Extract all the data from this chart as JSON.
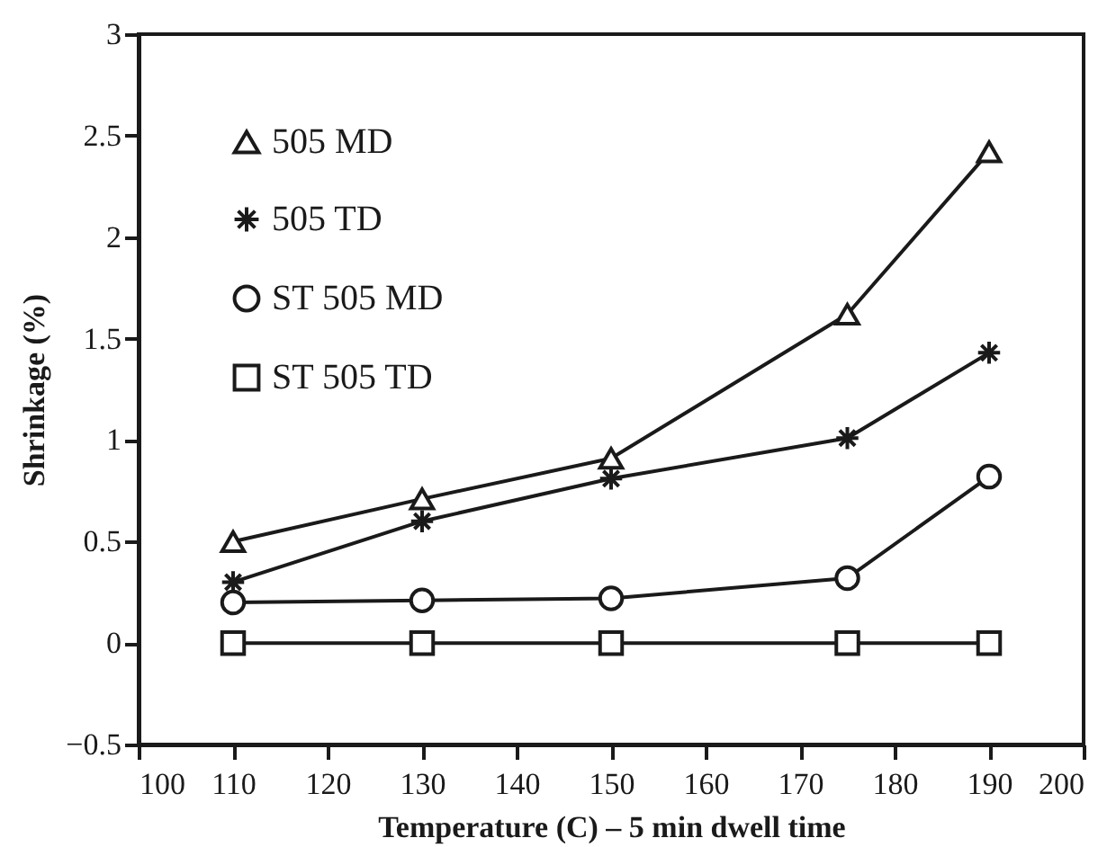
{
  "chart_data": {
    "type": "line",
    "xlabel": "Temperature (C) – 5 min dwell time",
    "ylabel": "Shrinkage (%)",
    "x": [
      110,
      130,
      150,
      175,
      190
    ],
    "series": [
      {
        "name": "505 MD",
        "color": "#1a1a1a",
        "marker": "triangle",
        "values": [
          0.5,
          0.71,
          0.91,
          1.62,
          2.42
        ]
      },
      {
        "name": "505 TD",
        "color": "#1a1a1a",
        "marker": "cross",
        "values": [
          0.3,
          0.6,
          0.81,
          1.01,
          1.43
        ]
      },
      {
        "name": "ST 505 MD",
        "color": "#1a1a1a",
        "marker": "circle",
        "values": [
          0.2,
          0.21,
          0.22,
          0.32,
          0.82
        ]
      },
      {
        "name": "ST 505 TD",
        "color": "#1a1a1a",
        "marker": "square",
        "values": [
          0,
          0,
          0,
          0,
          0
        ]
      }
    ],
    "xlim": [
      100,
      200
    ],
    "xticks": [
      100,
      110,
      120,
      130,
      140,
      150,
      160,
      170,
      180,
      190,
      200
    ],
    "ylim": [
      -0.5,
      3
    ],
    "yticks": [
      -0.5,
      0,
      0.5,
      1,
      1.5,
      2,
      2.5,
      3
    ],
    "grid": false,
    "legend": "top left",
    "line_style": "solid"
  }
}
